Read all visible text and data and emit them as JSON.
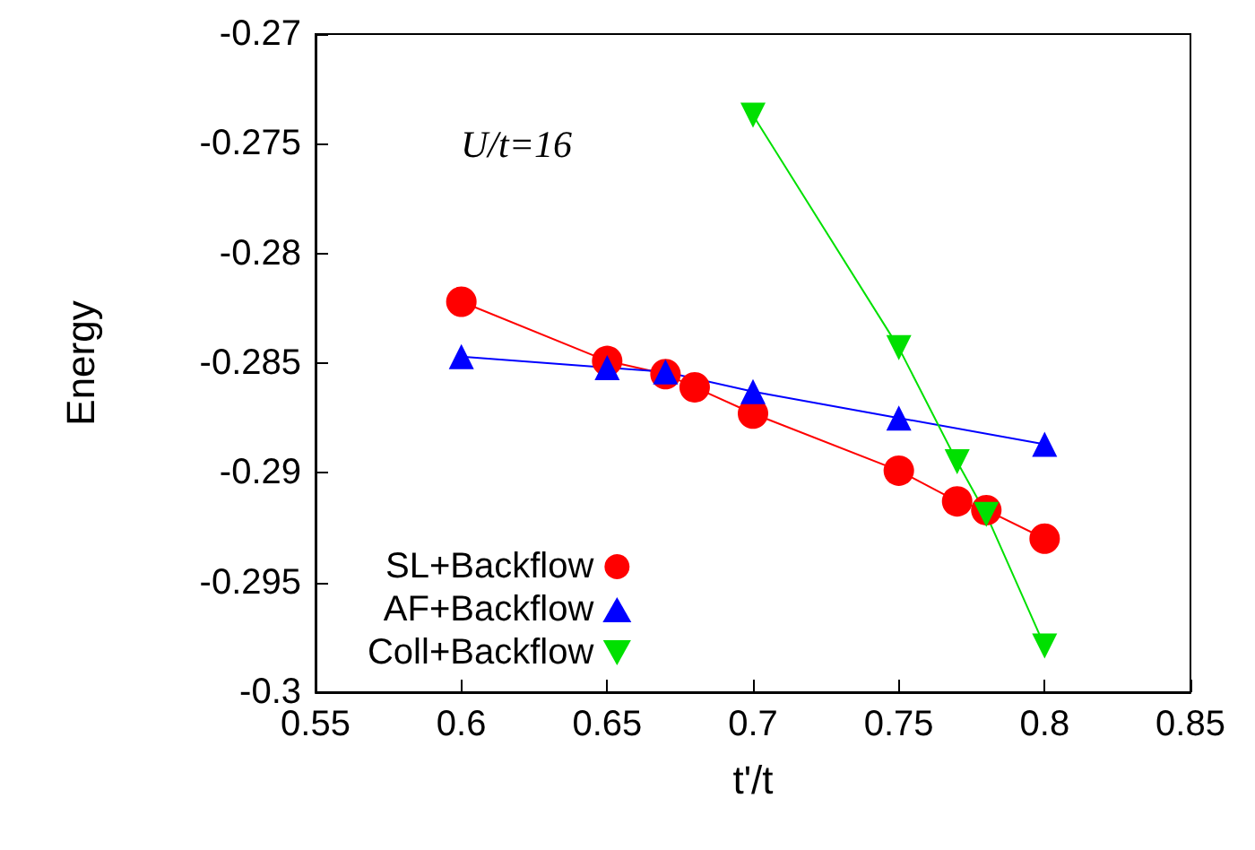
{
  "chart_data": {
    "type": "line",
    "xlabel": "t'/t",
    "ylabel": "Energy",
    "annotations": [
      "U/t=16"
    ],
    "series": [
      {
        "name": "SL+Backflow",
        "color": "#ff0000",
        "marker": "circle",
        "x": [
          0.6,
          0.65,
          0.67,
          0.68,
          0.7,
          0.75,
          0.77,
          0.78,
          0.8
        ],
        "values": [
          -0.2822,
          -0.2849,
          -0.2855,
          -0.2861,
          -0.2873,
          -0.2899,
          -0.2913,
          -0.2917,
          -0.293
        ]
      },
      {
        "name": "AF+Backflow",
        "color": "#0000ff",
        "marker": "triangle",
        "x": [
          0.6,
          0.65,
          0.67,
          0.7,
          0.75,
          0.8
        ],
        "values": [
          -0.2847,
          -0.2852,
          -0.2854,
          -0.2863,
          -0.2875,
          -0.2887
        ]
      },
      {
        "name": "Coll+Backflow",
        "color": "#00e000",
        "marker": "triangle-down",
        "x": [
          0.7,
          0.75,
          0.77,
          0.78,
          0.8
        ],
        "values": [
          -0.2737,
          -0.2843,
          -0.2895,
          -0.2919,
          -0.2979
        ]
      }
    ],
    "xlim": [
      0.55,
      0.85
    ],
    "xticks": [
      0.55,
      0.6,
      0.65,
      0.7,
      0.75,
      0.8,
      0.85
    ],
    "ylim": [
      -0.3,
      -0.27
    ],
    "yticks": [
      -0.3,
      -0.295,
      -0.29,
      -0.285,
      -0.28,
      -0.275,
      -0.27
    ],
    "grid": false,
    "legend": "bottom left"
  }
}
